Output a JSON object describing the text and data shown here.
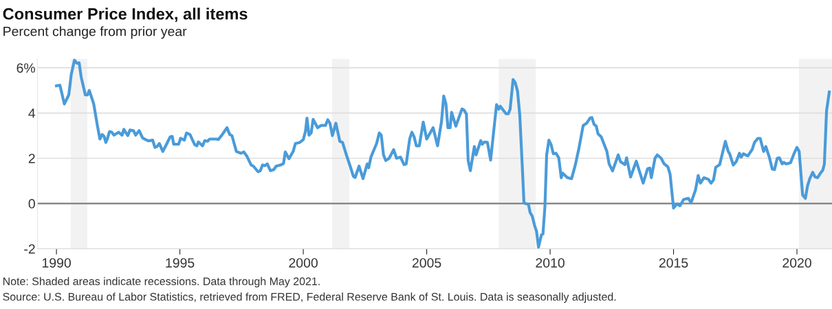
{
  "chart_data": {
    "type": "line",
    "title": "Consumer Price Index, all items",
    "subtitle": "Percent change from prior year",
    "x": [
      1990.0,
      1990.14,
      1990.32,
      1990.5,
      1990.6,
      1990.73,
      1990.83,
      1990.92,
      1991.0,
      1991.17,
      1991.26,
      1991.33,
      1991.51,
      1991.65,
      1991.76,
      1991.85,
      1991.93,
      1992.0,
      1992.06,
      1992.15,
      1992.24,
      1992.33,
      1992.52,
      1992.66,
      1992.73,
      1992.89,
      1992.98,
      1993.12,
      1993.21,
      1993.35,
      1993.49,
      1993.62,
      1993.72,
      1993.9,
      1993.99,
      1994.08,
      1994.17,
      1994.31,
      1994.45,
      1994.61,
      1994.69,
      1994.75,
      1994.95,
      1995.03,
      1995.18,
      1995.27,
      1995.41,
      1995.6,
      1995.69,
      1995.75,
      1995.92,
      1996.01,
      1996.12,
      1996.21,
      1996.47,
      1996.56,
      1996.7,
      1996.91,
      1997.02,
      1997.11,
      1997.29,
      1997.48,
      1997.59,
      1997.71,
      1997.89,
      1997.98,
      1998.17,
      1998.26,
      1998.35,
      1998.44,
      1998.54,
      1998.67,
      1998.81,
      1998.9,
      1999.08,
      1999.2,
      1999.27,
      1999.42,
      1999.59,
      1999.68,
      1999.86,
      2000.0,
      2000.09,
      2000.15,
      2000.23,
      2000.32,
      2000.4,
      2000.58,
      2000.72,
      2000.9,
      2000.99,
      2001.08,
      2001.18,
      2001.32,
      2001.48,
      2001.59,
      2001.76,
      2001.87,
      2002.03,
      2002.1,
      2002.26,
      2002.42,
      2002.59,
      2002.65,
      2002.74,
      2002.97,
      2003.08,
      2003.16,
      2003.25,
      2003.34,
      2003.48,
      2003.66,
      2003.78,
      2003.94,
      2004.08,
      2004.17,
      2004.31,
      2004.4,
      2004.49,
      2004.58,
      2004.7,
      2004.86,
      2005.0,
      2005.26,
      2005.44,
      2005.6,
      2005.69,
      2005.78,
      2005.86,
      2005.95,
      2006.01,
      2006.18,
      2006.43,
      2006.52,
      2006.61,
      2006.68,
      2006.77,
      2006.93,
      2007.0,
      2007.19,
      2007.25,
      2007.34,
      2007.46,
      2007.59,
      2007.83,
      2007.92,
      2007.98,
      2008.21,
      2008.31,
      2008.38,
      2008.5,
      2008.59,
      2008.68,
      2008.77,
      2008.87,
      2008.94,
      2009.05,
      2009.12,
      2009.19,
      2009.28,
      2009.37,
      2009.45,
      2009.53,
      2009.65,
      2009.71,
      2009.79,
      2009.86,
      2009.95,
      2010.04,
      2010.13,
      2010.24,
      2010.35,
      2010.45,
      2010.51,
      2010.7,
      2010.87,
      2011.02,
      2011.16,
      2011.34,
      2011.48,
      2011.62,
      2011.69,
      2011.78,
      2011.87,
      2011.94,
      2012.07,
      2012.3,
      2012.39,
      2012.53,
      2012.76,
      2012.85,
      2013.03,
      2013.1,
      2013.26,
      2013.49,
      2013.77,
      2013.95,
      2014.04,
      2014.1,
      2014.25,
      2014.34,
      2014.5,
      2014.62,
      2014.77,
      2014.86,
      2015.0,
      2015.14,
      2015.26,
      2015.41,
      2015.6,
      2015.71,
      2015.89,
      2016.0,
      2016.09,
      2016.23,
      2016.41,
      2016.52,
      2016.62,
      2016.71,
      2016.87,
      2017.1,
      2017.21,
      2017.28,
      2017.42,
      2017.54,
      2017.67,
      2017.74,
      2017.83,
      2018.01,
      2018.19,
      2018.28,
      2018.42,
      2018.51,
      2018.65,
      2018.74,
      2018.88,
      2019.0,
      2019.09,
      2019.2,
      2019.29,
      2019.4,
      2019.47,
      2019.56,
      2019.74,
      2019.88,
      2020.0,
      2020.09,
      2020.23,
      2020.34,
      2020.43,
      2020.52,
      2020.64,
      2020.73,
      2020.84,
      2020.95,
      2021.05,
      2021.11,
      2021.2,
      2021.31
    ],
    "series": [
      {
        "color": "#4a9bd9",
        "values": [
          5.2,
          5.23,
          4.4,
          4.8,
          5.7,
          6.34,
          6.2,
          6.22,
          5.6,
          4.8,
          4.8,
          5.0,
          4.4,
          3.5,
          2.85,
          3.05,
          2.97,
          2.7,
          2.85,
          3.18,
          3.15,
          3.02,
          3.15,
          3.02,
          3.28,
          3.0,
          3.25,
          3.22,
          3.02,
          3.22,
          2.9,
          2.82,
          2.77,
          2.8,
          2.48,
          2.52,
          2.65,
          2.3,
          2.6,
          2.95,
          2.97,
          2.62,
          2.62,
          2.88,
          2.8,
          3.12,
          3.05,
          2.6,
          2.55,
          2.72,
          2.55,
          2.78,
          2.75,
          2.85,
          2.85,
          2.83,
          3.02,
          3.35,
          3.05,
          3.0,
          2.3,
          2.22,
          2.28,
          2.1,
          1.7,
          1.65,
          1.4,
          1.45,
          1.7,
          1.67,
          1.75,
          1.45,
          1.5,
          1.65,
          1.7,
          1.77,
          2.28,
          1.98,
          2.3,
          2.65,
          2.7,
          2.82,
          3.2,
          3.77,
          3.02,
          3.12,
          3.72,
          3.35,
          3.45,
          3.45,
          3.7,
          3.55,
          3.0,
          3.55,
          2.75,
          2.7,
          2.1,
          1.75,
          1.2,
          1.15,
          1.65,
          1.1,
          1.75,
          1.58,
          2.05,
          2.65,
          3.12,
          3.02,
          2.15,
          1.9,
          2.0,
          2.38,
          2.0,
          2.05,
          1.72,
          1.75,
          2.85,
          3.15,
          2.95,
          2.55,
          2.55,
          3.6,
          2.85,
          3.35,
          2.55,
          3.62,
          4.75,
          4.4,
          3.35,
          3.35,
          4.03,
          3.42,
          4.18,
          4.12,
          3.95,
          1.9,
          1.45,
          2.52,
          2.15,
          2.78,
          2.62,
          2.72,
          2.7,
          1.92,
          4.37,
          4.17,
          4.3,
          3.97,
          3.97,
          4.17,
          5.48,
          5.33,
          4.97,
          3.92,
          1.7,
          0.03,
          -0.02,
          -0.02,
          -0.4,
          -0.57,
          -0.97,
          -1.23,
          -1.93,
          -1.38,
          -1.35,
          -0.12,
          2.15,
          2.8,
          2.6,
          2.2,
          2.22,
          2.02,
          1.14,
          1.34,
          1.14,
          1.1,
          1.7,
          2.4,
          3.45,
          3.55,
          3.78,
          3.8,
          3.5,
          3.42,
          3.08,
          2.95,
          2.3,
          1.75,
          1.44,
          2.15,
          1.85,
          1.72,
          2.02,
          1.17,
          1.87,
          0.9,
          1.54,
          1.57,
          1.14,
          2.0,
          2.15,
          2.0,
          1.75,
          1.62,
          1.3,
          -0.2,
          -0.02,
          -0.1,
          0.18,
          0.23,
          0.03,
          0.6,
          1.24,
          0.9,
          1.14,
          1.07,
          0.9,
          1.04,
          1.6,
          1.72,
          2.75,
          2.32,
          2.18,
          1.7,
          1.85,
          2.22,
          2.05,
          2.2,
          2.1,
          2.4,
          2.7,
          2.88,
          2.88,
          2.3,
          2.52,
          2.05,
          1.52,
          1.5,
          2.0,
          2.02,
          1.75,
          1.82,
          1.75,
          1.8,
          2.2,
          2.48,
          2.3,
          0.38,
          0.23,
          0.78,
          1.1,
          1.38,
          1.18,
          1.14,
          1.34,
          1.48,
          1.74,
          4.1,
          4.93
        ]
      }
    ],
    "xlim": [
      1989.23,
      2021.42
    ],
    "xticks": [
      1990,
      1995,
      2000,
      2005,
      2010,
      2015,
      2020
    ],
    "ylim": [
      -2,
      6.4
    ],
    "yticks": [
      -2,
      0,
      2,
      4,
      {
        "value": 6,
        "label": "6%"
      }
    ],
    "grid": "y",
    "marker": "none",
    "line_style": "solid",
    "ref_lines": [
      {
        "axis": "y",
        "value": 0,
        "label": null,
        "color": "#808080"
      }
    ],
    "bands": [
      {
        "axis": "x",
        "from": 1990.58,
        "to": 1991.25,
        "label": null,
        "color": "#f2f2f2"
      },
      {
        "axis": "x",
        "from": 2001.17,
        "to": 2001.87,
        "label": null,
        "color": "#f2f2f2"
      },
      {
        "axis": "x",
        "from": 2007.92,
        "to": 2009.42,
        "label": null,
        "color": "#f2f2f2"
      },
      {
        "axis": "x",
        "from": 2020.08,
        "to": 2021.42,
        "label": null,
        "color": "#f2f2f2"
      }
    ],
    "annotations": [
      "Note: Shaded areas indicate recessions. Data through May 2021.",
      "Source: U.S. Bureau of Labor Statistics, retrieved from FRED, Federal Reserve Bank of St. Louis. Data is seasonally adjusted."
    ]
  }
}
